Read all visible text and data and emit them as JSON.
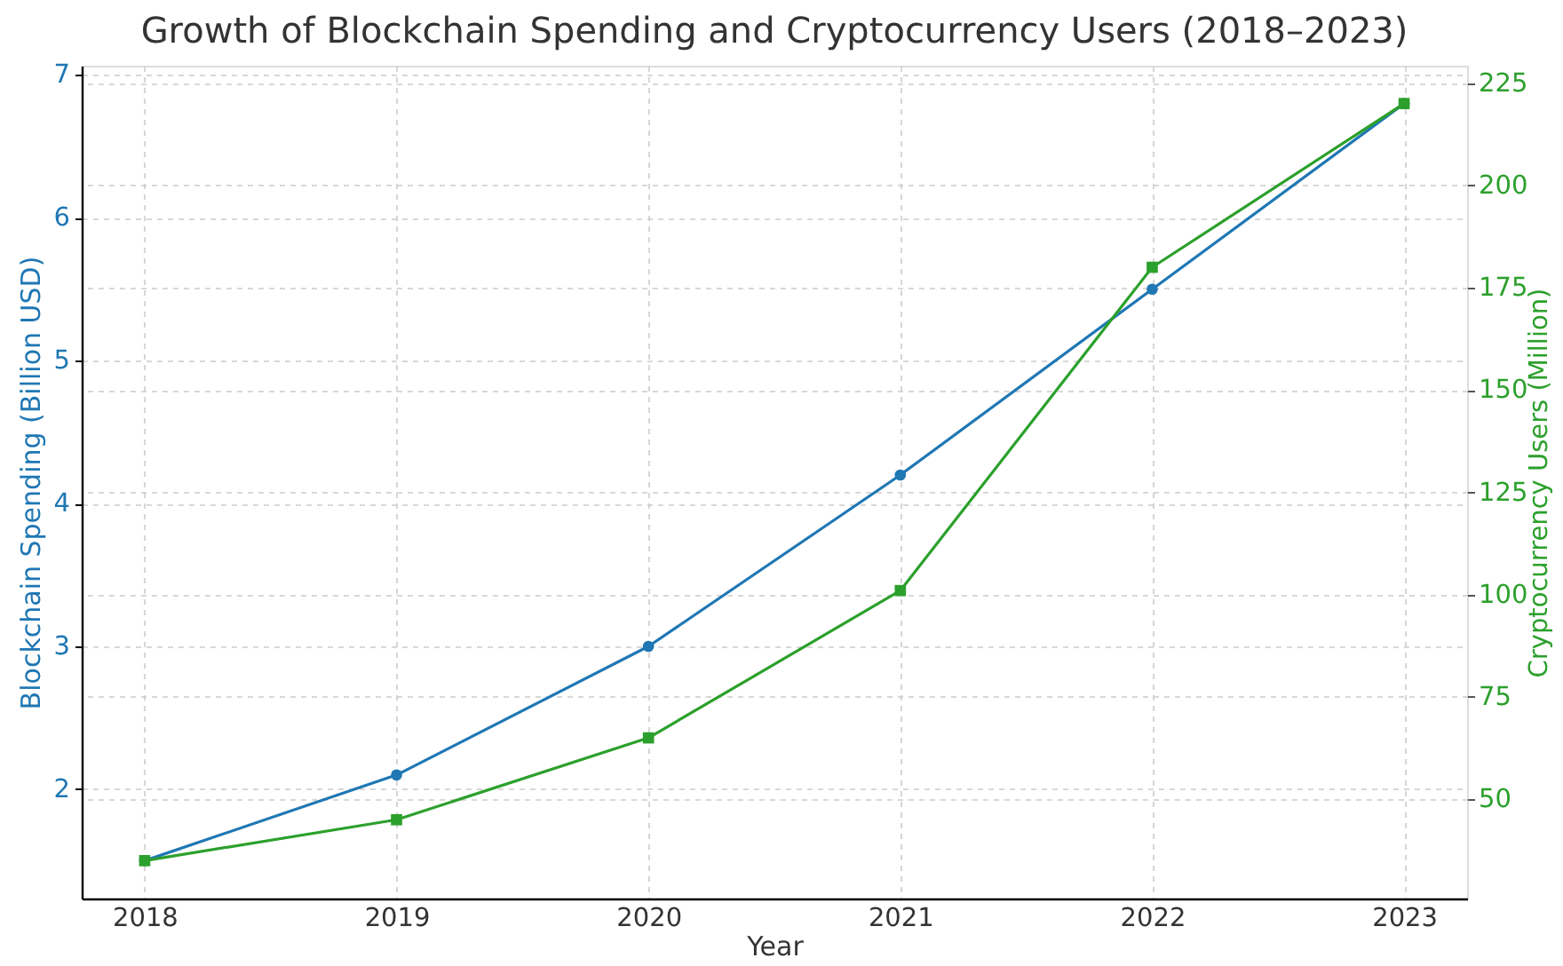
{
  "chart_data": {
    "type": "line",
    "title": "Growth of Blockchain Spending and Cryptocurrency Users (2018–2023)",
    "xlabel": "Year",
    "ylabel": "Blockchain Spending (Billion USD)",
    "y2label": "Cryptocurrency Users (Million)",
    "x": [
      2018,
      2019,
      2020,
      2021,
      2022,
      2023
    ],
    "series": [
      {
        "color": "#1f77b4",
        "marker": "circle",
        "values": [
          1.5,
          2.1,
          3.0,
          4.2,
          5.5,
          6.8
        ]
      },
      {
        "color": "#2ca02c",
        "marker": "square",
        "axis": "y2",
        "values": [
          35,
          45,
          65,
          101,
          180,
          220
        ]
      }
    ],
    "xlim": [
      2017.75,
      2023.25
    ],
    "xticks": [
      2018,
      2019,
      2020,
      2021,
      2022,
      2023
    ],
    "ylim": [
      1.235,
      7.065
    ],
    "yticks": [
      2,
      3,
      4,
      5,
      6,
      7
    ],
    "y2lim": [
      25.75,
      229.25
    ],
    "y2ticks": [
      50,
      75,
      100,
      125,
      150,
      175,
      200,
      225
    ],
    "grid": true,
    "line_style": "solid"
  }
}
